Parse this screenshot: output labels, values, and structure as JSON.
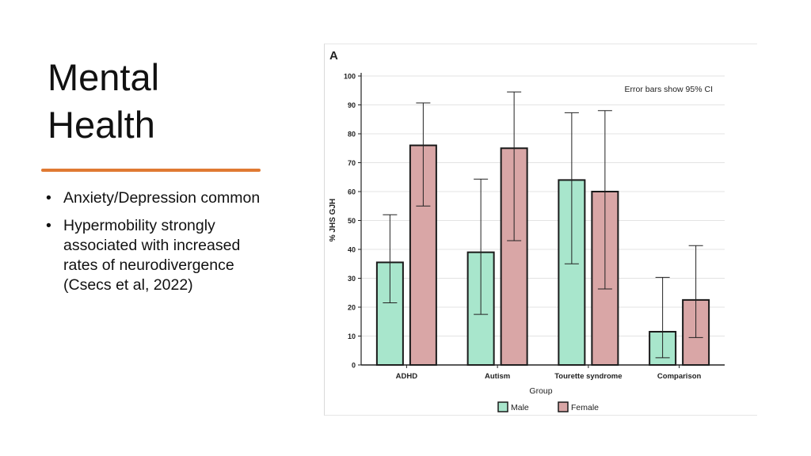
{
  "slide": {
    "title_line1": "Mental",
    "title_line2": "Health",
    "bullets": [
      "Anxiety/Depression common",
      "Hypermobility strongly associated with increased rates of neurodivergence (Csecs et al, 2022)"
    ]
  },
  "colors": {
    "accent_rule": "#e07a33",
    "male": "#a8e6cc",
    "female": "#d9a6a6",
    "bar_stroke": "#1a1a1a"
  },
  "chart_data": {
    "type": "bar",
    "panel_label": "A",
    "annotation": "Error bars show 95% CI",
    "xlabel": "Group",
    "ylabel": "% JHS GJH",
    "ylim": [
      0,
      100
    ],
    "yticks": [
      0,
      10,
      20,
      30,
      40,
      50,
      60,
      70,
      80,
      90,
      100
    ],
    "grid": true,
    "legend_position": "bottom-center",
    "categories": [
      "ADHD",
      "Autism",
      "Tourette syndrome",
      "Comparison"
    ],
    "series": [
      {
        "name": "Male",
        "values": [
          35.5,
          39,
          64,
          11.5
        ],
        "ci_low": [
          21.5,
          17.5,
          35,
          2.5
        ],
        "ci_high": [
          52,
          64.3,
          87.3,
          30.3
        ]
      },
      {
        "name": "Female",
        "values": [
          76,
          75,
          60,
          22.5
        ],
        "ci_low": [
          55,
          43,
          26.3,
          9.5
        ],
        "ci_high": [
          90.7,
          94.5,
          88,
          41.3
        ]
      }
    ]
  }
}
